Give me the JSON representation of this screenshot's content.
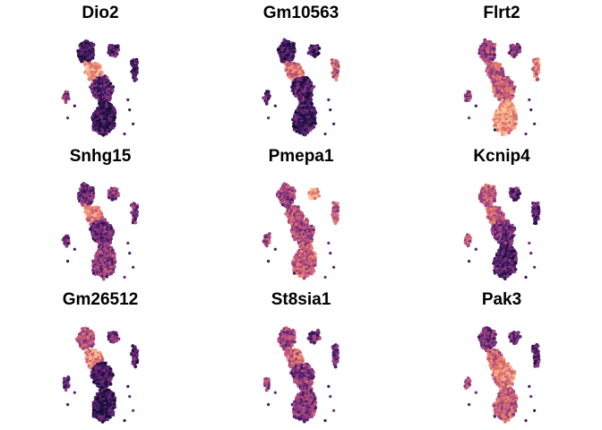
{
  "chart_data": {
    "type": "scatter",
    "layout": "3x3 grid of UMAP feature plots",
    "colormap": [
      "#170f35",
      "#4a1a68",
      "#8a3a82",
      "#c85b7a",
      "#f08a6a",
      "#fbc7a0"
    ],
    "axes_visible": false,
    "legend": "none",
    "panels": [
      {
        "title": "Dio2",
        "expression": {
          "top_left": 0.15,
          "top_right": 0.2,
          "small_right": 0.15,
          "center_hotspot": 0.85,
          "middle": 0.25,
          "lower": 0.12,
          "left": 0.35
        }
      },
      {
        "title": "Gm10563",
        "expression": {
          "top_left": 0.12,
          "top_right": 0.18,
          "small_right": 0.6,
          "center_hotspot": 0.7,
          "middle": 0.2,
          "lower": 0.15,
          "left": 0.3
        }
      },
      {
        "title": "Flrt2",
        "expression": {
          "top_left": 0.45,
          "top_right": 0.35,
          "small_right": 0.7,
          "center_hotspot": 0.55,
          "middle": 0.6,
          "lower": 0.85,
          "left": 0.45
        }
      },
      {
        "title": "Snhg15",
        "expression": {
          "top_left": 0.3,
          "top_right": 0.35,
          "small_right": 0.35,
          "center_hotspot": 0.75,
          "middle": 0.3,
          "lower": 0.4,
          "left": 0.35
        }
      },
      {
        "title": "Pmepa1",
        "expression": {
          "top_left": 0.45,
          "top_right": 0.85,
          "small_right": 0.6,
          "center_hotspot": 0.55,
          "middle": 0.5,
          "lower": 0.6,
          "left": 0.5
        }
      },
      {
        "title": "Kcnip4",
        "expression": {
          "top_left": 0.55,
          "top_right": 0.25,
          "small_right": 0.2,
          "center_hotspot": 0.6,
          "middle": 0.35,
          "lower": 0.2,
          "left": 0.55
        }
      },
      {
        "title": "Gm26512",
        "expression": {
          "top_left": 0.55,
          "top_right": 0.3,
          "small_right": 0.2,
          "center_hotspot": 0.75,
          "middle": 0.15,
          "lower": 0.1,
          "left": 0.25
        }
      },
      {
        "title": "St8sia1",
        "expression": {
          "top_left": 0.45,
          "top_right": 0.3,
          "small_right": 0.3,
          "center_hotspot": 0.65,
          "middle": 0.4,
          "lower": 0.4,
          "left": 0.45
        }
      },
      {
        "title": "Pak3",
        "expression": {
          "top_left": 0.35,
          "top_right": 0.3,
          "small_right": 0.25,
          "center_hotspot": 0.6,
          "middle": 0.75,
          "lower": 0.6,
          "left": 0.45
        }
      }
    ]
  }
}
